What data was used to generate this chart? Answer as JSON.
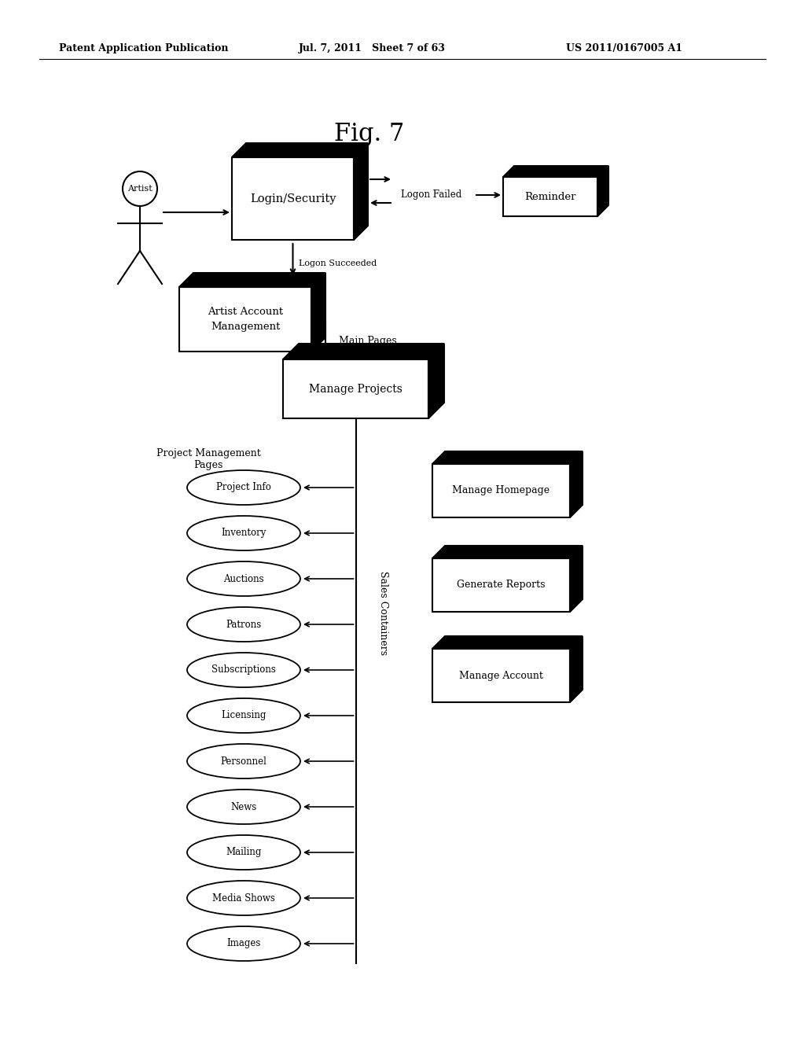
{
  "title": "Fig. 7",
  "header_left": "Patent Application Publication",
  "header_mid": "Jul. 7, 2011   Sheet 7 of 63",
  "header_right": "US 2011/0167005 A1",
  "bg_color": "#ffffff",
  "ellipse_labels": [
    "Project Info",
    "Inventory",
    "Auctions",
    "Patrons",
    "Subscriptions",
    "Licensing",
    "Personnel",
    "News",
    "Mailing",
    "Media Shows",
    "Images"
  ],
  "rbox_labels": [
    "Manage Homepage",
    "Generate Reports",
    "Manage Account"
  ]
}
